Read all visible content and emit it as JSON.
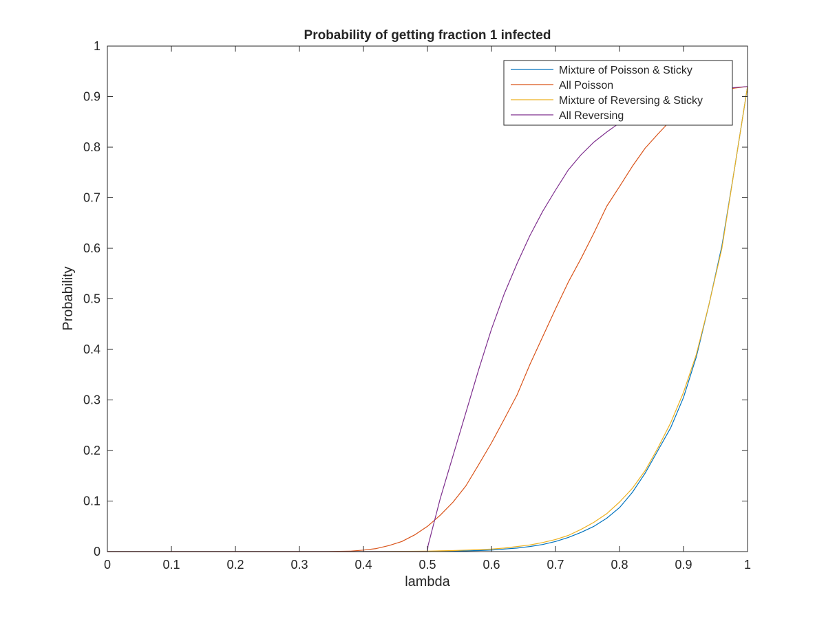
{
  "chart_data": {
    "type": "line",
    "title": "Probability of getting fraction 1 infected",
    "xlabel": "lambda",
    "ylabel": "Probability",
    "xlim": [
      0,
      1
    ],
    "ylim": [
      0,
      1
    ],
    "xticks": [
      0,
      0.1,
      0.2,
      0.3,
      0.4,
      0.5,
      0.6,
      0.7,
      0.8,
      0.9,
      1
    ],
    "yticks": [
      0,
      0.1,
      0.2,
      0.3,
      0.4,
      0.5,
      0.6,
      0.7,
      0.8,
      0.9,
      1
    ],
    "x_tick_labels": [
      "0",
      "0.1",
      "0.2",
      "0.3",
      "0.4",
      "0.5",
      "0.6",
      "0.7",
      "0.8",
      "0.9",
      "1"
    ],
    "y_tick_labels": [
      "0",
      "0.1",
      "0.2",
      "0.3",
      "0.4",
      "0.5",
      "0.6",
      "0.7",
      "0.8",
      "0.9",
      "1"
    ],
    "grid": false,
    "legend_position": "top-right",
    "series": [
      {
        "name": "Mixture of Poisson & Sticky",
        "color": "#0072BD",
        "x": [
          0,
          0.1,
          0.2,
          0.3,
          0.4,
          0.5,
          0.52,
          0.54,
          0.56,
          0.58,
          0.6,
          0.62,
          0.64,
          0.66,
          0.68,
          0.7,
          0.72,
          0.74,
          0.76,
          0.78,
          0.8,
          0.82,
          0.84,
          0.86,
          0.88,
          0.9,
          0.92,
          0.94,
          0.96,
          0.98,
          1
        ],
        "y": [
          0,
          0,
          0,
          0,
          0,
          0,
          0.0005,
          0.001,
          0.0015,
          0.002,
          0.003,
          0.005,
          0.007,
          0.01,
          0.014,
          0.02,
          0.028,
          0.038,
          0.05,
          0.066,
          0.087,
          0.117,
          0.155,
          0.2,
          0.245,
          0.305,
          0.385,
          0.49,
          0.605,
          0.76,
          0.92
        ]
      },
      {
        "name": "All Poisson",
        "color": "#D95319",
        "x": [
          0,
          0.1,
          0.2,
          0.3,
          0.34,
          0.36,
          0.38,
          0.4,
          0.42,
          0.44,
          0.46,
          0.48,
          0.5,
          0.52,
          0.54,
          0.56,
          0.58,
          0.6,
          0.62,
          0.64,
          0.66,
          0.68,
          0.7,
          0.72,
          0.74,
          0.76,
          0.78,
          0.8,
          0.82,
          0.84,
          0.86,
          0.88,
          0.9,
          0.92,
          0.94,
          0.96,
          0.98,
          1
        ],
        "y": [
          0,
          0,
          0,
          0,
          0,
          0.0005,
          0.001,
          0.003,
          0.006,
          0.012,
          0.02,
          0.033,
          0.05,
          0.072,
          0.098,
          0.13,
          0.172,
          0.215,
          0.262,
          0.31,
          0.37,
          0.425,
          0.48,
          0.533,
          0.58,
          0.63,
          0.683,
          0.722,
          0.762,
          0.798,
          0.826,
          0.853,
          0.877,
          0.894,
          0.905,
          0.912,
          0.917,
          0.92
        ]
      },
      {
        "name": "Mixture of Reversing & Sticky",
        "color": "#EDB120",
        "x": [
          0,
          0.1,
          0.2,
          0.3,
          0.4,
          0.5,
          0.52,
          0.54,
          0.56,
          0.58,
          0.6,
          0.62,
          0.64,
          0.66,
          0.68,
          0.7,
          0.72,
          0.74,
          0.76,
          0.78,
          0.8,
          0.82,
          0.84,
          0.86,
          0.88,
          0.9,
          0.92,
          0.94,
          0.96,
          0.98,
          1
        ],
        "y": [
          0,
          0,
          0,
          0,
          0,
          0.001,
          0.0015,
          0.002,
          0.003,
          0.004,
          0.005,
          0.007,
          0.01,
          0.013,
          0.018,
          0.024,
          0.032,
          0.044,
          0.058,
          0.075,
          0.098,
          0.125,
          0.16,
          0.205,
          0.255,
          0.315,
          0.39,
          0.49,
          0.6,
          0.76,
          0.92
        ]
      },
      {
        "name": "All Reversing",
        "color": "#7E2F8E",
        "x": [
          0,
          0.1,
          0.2,
          0.3,
          0.4,
          0.5,
          0.501,
          0.52,
          0.54,
          0.56,
          0.58,
          0.6,
          0.62,
          0.64,
          0.66,
          0.68,
          0.7,
          0.72,
          0.74,
          0.76,
          0.78,
          0.8,
          0.82,
          0.84,
          0.86,
          0.88,
          0.9,
          0.92,
          0.94,
          0.96,
          0.98,
          1
        ],
        "y": [
          0,
          0,
          0,
          0,
          0,
          0,
          0.012,
          0.105,
          0.19,
          0.275,
          0.36,
          0.44,
          0.51,
          0.57,
          0.625,
          0.673,
          0.715,
          0.755,
          0.785,
          0.81,
          0.83,
          0.848,
          0.863,
          0.876,
          0.887,
          0.896,
          0.903,
          0.909,
          0.913,
          0.916,
          0.918,
          0.92
        ]
      }
    ]
  }
}
